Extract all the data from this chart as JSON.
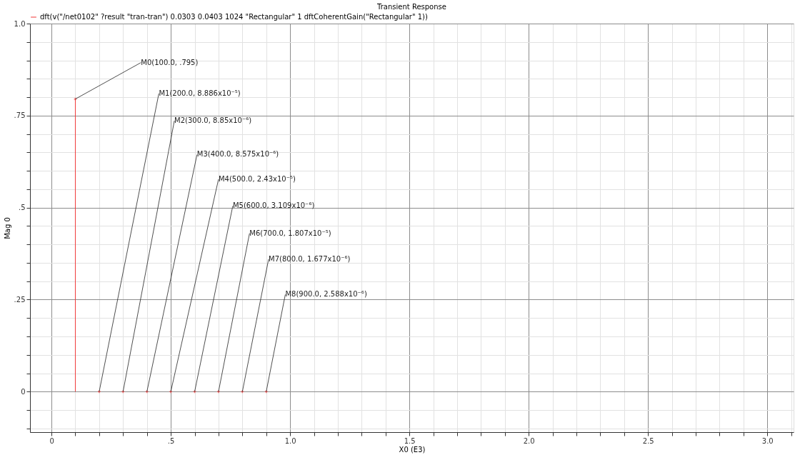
{
  "chart_data": {
    "type": "lollipop",
    "title": "Transient Response",
    "xlabel": "X0 (E3)",
    "ylabel": "Mag 0",
    "x": [
      0.1,
      0.2,
      0.3,
      0.4,
      0.5,
      0.6,
      0.7,
      0.8,
      0.9
    ],
    "series": [
      {
        "name": "dft(v(\"/net0102\" ?result \"tran-tran\") 0.0303 0.0403 1024 \"Rectangular\" 1 dftCoherentGain(\"Rectangular\" 1))",
        "color": "#f03c3c",
        "values": [
          0.795,
          8.886e-05,
          8.85e-06,
          8.575e-06,
          2.43e-05,
          3.109e-06,
          1.807e-05,
          1.677e-06,
          2.588e-06
        ]
      }
    ],
    "annotations": [
      {
        "text": "M0(100.0, .795)",
        "x": 0.1,
        "y": 0.795
      },
      {
        "text": "M1(200.0, 8.886x10⁻⁵)",
        "x": 0.2,
        "y": 8.886e-05
      },
      {
        "text": "M2(300.0, 8.85x10⁻⁶)",
        "x": 0.3,
        "y": 8.85e-06
      },
      {
        "text": "M3(400.0, 8.575x10⁻⁶)",
        "x": 0.4,
        "y": 8.575e-06
      },
      {
        "text": "M4(500.0, 2.43x10⁻⁵)",
        "x": 0.5,
        "y": 2.43e-05
      },
      {
        "text": "M5(600.0, 3.109x10⁻⁶)",
        "x": 0.6,
        "y": 3.109e-06
      },
      {
        "text": "M6(700.0, 1.807x10⁻⁵)",
        "x": 0.7,
        "y": 1.807e-05
      },
      {
        "text": "M7(800.0, 1.677x10⁻⁶)",
        "x": 0.8,
        "y": 1.677e-06
      },
      {
        "text": "M8(900.0, 2.588x10⁻⁶)",
        "x": 0.9,
        "y": 2.588e-06
      }
    ],
    "xlim": [
      -0.09,
      3.11
    ],
    "ylim": [
      -0.11,
      1.0
    ],
    "xticks": [
      {
        "value": 0,
        "label": "0"
      },
      {
        "value": 0.1,
        "label": null
      },
      {
        "value": 0.2,
        "label": null
      },
      {
        "value": 0.3,
        "label": null
      },
      {
        "value": 0.4,
        "label": null
      },
      {
        "value": 0.5,
        "label": ".5"
      },
      {
        "value": 0.6,
        "label": null
      },
      {
        "value": 0.7,
        "label": null
      },
      {
        "value": 0.8,
        "label": null
      },
      {
        "value": 0.9,
        "label": null
      },
      {
        "value": 1.0,
        "label": "1.0"
      },
      {
        "value": 1.1,
        "label": null
      },
      {
        "value": 1.2,
        "label": null
      },
      {
        "value": 1.3,
        "label": null
      },
      {
        "value": 1.4,
        "label": null
      },
      {
        "value": 1.5,
        "label": "1.5"
      },
      {
        "value": 1.6,
        "label": null
      },
      {
        "value": 1.7,
        "label": null
      },
      {
        "value": 1.8,
        "label": null
      },
      {
        "value": 1.9,
        "label": null
      },
      {
        "value": 2.0,
        "label": "2.0"
      },
      {
        "value": 2.1,
        "label": null
      },
      {
        "value": 2.2,
        "label": null
      },
      {
        "value": 2.3,
        "label": null
      },
      {
        "value": 2.4,
        "label": null
      },
      {
        "value": 2.5,
        "label": "2.5"
      },
      {
        "value": 2.6,
        "label": null
      },
      {
        "value": 2.7,
        "label": null
      },
      {
        "value": 2.8,
        "label": null
      },
      {
        "value": 2.9,
        "label": null
      },
      {
        "value": 3.0,
        "label": "3.0"
      },
      {
        "value": 3.1,
        "label": null
      }
    ],
    "yticks": [
      {
        "value": -0.1,
        "label": null
      },
      {
        "value": -0.05,
        "label": null
      },
      {
        "value": 0,
        "label": "0"
      },
      {
        "value": 0.05,
        "label": null
      },
      {
        "value": 0.1,
        "label": null
      },
      {
        "value": 0.15,
        "label": null
      },
      {
        "value": 0.2,
        "label": null
      },
      {
        "value": 0.25,
        "label": ".25"
      },
      {
        "value": 0.3,
        "label": null
      },
      {
        "value": 0.35,
        "label": null
      },
      {
        "value": 0.4,
        "label": null
      },
      {
        "value": 0.45,
        "label": null
      },
      {
        "value": 0.5,
        "label": ".5"
      },
      {
        "value": 0.55,
        "label": null
      },
      {
        "value": 0.6,
        "label": null
      },
      {
        "value": 0.65,
        "label": null
      },
      {
        "value": 0.7,
        "label": null
      },
      {
        "value": 0.75,
        "label": ".75"
      },
      {
        "value": 0.8,
        "label": null
      },
      {
        "value": 0.85,
        "label": null
      },
      {
        "value": 0.9,
        "label": null
      },
      {
        "value": 0.95,
        "label": null
      },
      {
        "value": 1.0,
        "label": "1.0"
      }
    ],
    "grid": true,
    "legend": "top left",
    "marker": "cross"
  }
}
